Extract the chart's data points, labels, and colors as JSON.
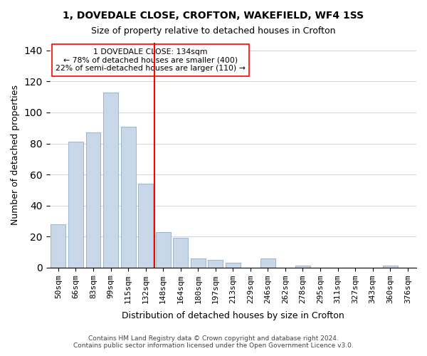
{
  "title1": "1, DOVEDALE CLOSE, CROFTON, WAKEFIELD, WF4 1SS",
  "title2": "Size of property relative to detached houses in Crofton",
  "xlabel": "Distribution of detached houses by size in Crofton",
  "ylabel": "Number of detached properties",
  "bar_labels": [
    "50sqm",
    "66sqm",
    "83sqm",
    "99sqm",
    "115sqm",
    "132sqm",
    "148sqm",
    "164sqm",
    "180sqm",
    "197sqm",
    "213sqm",
    "229sqm",
    "246sqm",
    "262sqm",
    "278sqm",
    "295sqm",
    "311sqm",
    "327sqm",
    "343sqm",
    "360sqm",
    "376sqm"
  ],
  "bar_values": [
    28,
    81,
    87,
    113,
    91,
    54,
    23,
    19,
    6,
    5,
    3,
    0,
    6,
    0,
    1,
    0,
    0,
    0,
    0,
    1,
    0
  ],
  "bar_color": "#c8d8e8",
  "bar_edge_color": "#a0b8d0",
  "vline_x": 5.5,
  "vline_color": "red",
  "annotation_title": "1 DOVEDALE CLOSE: 134sqm",
  "annotation_line1": "← 78% of detached houses are smaller (400)",
  "annotation_line2": "22% of semi-detached houses are larger (110) →",
  "ylim": [
    0,
    145
  ],
  "yticks": [
    0,
    20,
    40,
    60,
    80,
    100,
    120,
    140
  ],
  "footer1": "Contains HM Land Registry data © Crown copyright and database right 2024.",
  "footer2": "Contains public sector information licensed under the Open Government Licence v3.0."
}
